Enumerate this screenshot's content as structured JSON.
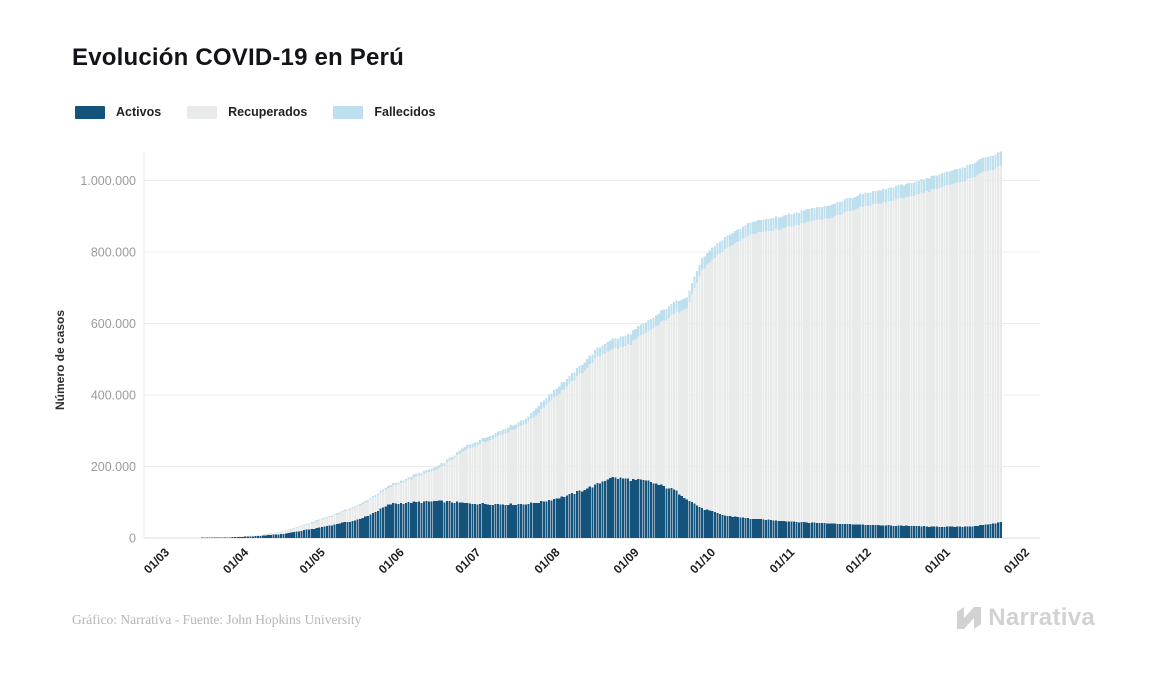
{
  "header": {
    "title": "Evolución COVID-19 en Perú"
  },
  "legend": {
    "items": [
      {
        "label": "Activos",
        "color": "#14537c"
      },
      {
        "label": "Recuperados",
        "color": "#e9eaea"
      },
      {
        "label": "Fallecidos",
        "color": "#bedfee"
      }
    ]
  },
  "footer": {
    "credit": "Gráfico: Narrativa - Fuente: John Hopkins University",
    "logo_text": "Narrativa"
  },
  "chart_data": {
    "type": "bar",
    "variant": "stacked-daily-bars",
    "title": "Evolución COVID-19 en Perú",
    "xlabel": "",
    "ylabel": "Número de casos",
    "ylim": [
      0,
      1100000
    ],
    "grid": true,
    "legend_position": "top-left",
    "colors": {
      "activos": "#14537c",
      "recuperados": "#e9eaea",
      "fallecidos": "#bedfee"
    },
    "grid_color": "#ececec",
    "baseline_color": "#d9dddd",
    "y_tick_color": "#9b9b9b",
    "x_tick_color": "#1d1d1d",
    "y_ticks": [
      {
        "value": 0,
        "label": "0"
      },
      {
        "value": 200000,
        "label": "200.000"
      },
      {
        "value": 400000,
        "label": "400.000"
      },
      {
        "value": 600000,
        "label": "600.000"
      },
      {
        "value": 800000,
        "label": "800.000"
      },
      {
        "value": 1000000,
        "label": "1.000.000"
      }
    ],
    "x_ticks": [
      {
        "date": "2020-03-01",
        "label": "01/03"
      },
      {
        "date": "2020-04-01",
        "label": "01/04"
      },
      {
        "date": "2020-05-01",
        "label": "01/05"
      },
      {
        "date": "2020-06-01",
        "label": "01/06"
      },
      {
        "date": "2020-07-01",
        "label": "01/07"
      },
      {
        "date": "2020-08-01",
        "label": "01/08"
      },
      {
        "date": "2020-09-01",
        "label": "01/09"
      },
      {
        "date": "2020-10-01",
        "label": "01/10"
      },
      {
        "date": "2020-11-01",
        "label": "01/11"
      },
      {
        "date": "2020-12-01",
        "label": "01/12"
      },
      {
        "date": "2021-01-01",
        "label": "01/01"
      },
      {
        "date": "2021-02-01",
        "label": "01/02"
      }
    ],
    "series_order": [
      "activos",
      "recuperados",
      "fallecidos"
    ],
    "anchors": [
      {
        "date": "2020-02-25",
        "activos": 0,
        "recuperados": 0,
        "fallecidos": 0
      },
      {
        "date": "2020-03-05",
        "activos": 20,
        "recuperados": 1,
        "fallecidos": 0
      },
      {
        "date": "2020-03-12",
        "activos": 200,
        "recuperados": 15,
        "fallecidos": 2
      },
      {
        "date": "2020-03-20",
        "activos": 850,
        "recuperados": 50,
        "fallecidos": 9
      },
      {
        "date": "2020-04-01",
        "activos": 2300,
        "recuperados": 900,
        "fallecidos": 100
      },
      {
        "date": "2020-04-10",
        "activos": 5500,
        "recuperados": 1900,
        "fallecidos": 500
      },
      {
        "date": "2020-04-20",
        "activos": 11500,
        "recuperados": 6000,
        "fallecidos": 1200
      },
      {
        "date": "2020-05-01",
        "activos": 25000,
        "recuperados": 16000,
        "fallecidos": 3000
      },
      {
        "date": "2020-05-10",
        "activos": 38000,
        "recuperados": 25500,
        "fallecidos": 3600
      },
      {
        "date": "2020-05-20",
        "activos": 52000,
        "recuperados": 38500,
        "fallecidos": 4200
      },
      {
        "date": "2020-06-01",
        "activos": 95000,
        "recuperados": 48000,
        "fallecidos": 5500
      },
      {
        "date": "2020-06-10",
        "activos": 100000,
        "recuperados": 68000,
        "fallecidos": 6800
      },
      {
        "date": "2020-06-20",
        "activos": 103000,
        "recuperados": 91000,
        "fallecidos": 8000
      },
      {
        "date": "2020-07-01",
        "activos": 97000,
        "recuperados": 152000,
        "fallecidos": 10000
      },
      {
        "date": "2020-07-10",
        "activos": 95000,
        "recuperados": 181000,
        "fallecidos": 11500
      },
      {
        "date": "2020-07-20",
        "activos": 94000,
        "recuperados": 213000,
        "fallecidos": 13200
      },
      {
        "date": "2020-07-25",
        "activos": 96000,
        "recuperados": 230000,
        "fallecidos": 14000
      },
      {
        "date": "2020-07-28",
        "activos": 99000,
        "recuperados": 245000,
        "fallecidos": 19000
      },
      {
        "date": "2020-08-01",
        "activos": 104000,
        "recuperados": 270000,
        "fallecidos": 19800
      },
      {
        "date": "2020-08-10",
        "activos": 120000,
        "recuperados": 310000,
        "fallecidos": 21500
      },
      {
        "date": "2020-08-20",
        "activos": 147000,
        "recuperados": 352000,
        "fallecidos": 24500
      },
      {
        "date": "2020-08-26",
        "activos": 170000,
        "recuperados": 358000,
        "fallecidos": 27000
      },
      {
        "date": "2020-09-01",
        "activos": 165000,
        "recuperados": 371000,
        "fallecidos": 29000
      },
      {
        "date": "2020-09-10",
        "activos": 158000,
        "recuperados": 419000,
        "fallecidos": 30200
      },
      {
        "date": "2020-09-20",
        "activos": 135000,
        "recuperados": 492000,
        "fallecidos": 31200
      },
      {
        "date": "2020-09-25",
        "activos": 110000,
        "recuperados": 535000,
        "fallecidos": 31800
      },
      {
        "date": "2020-10-01",
        "activos": 82000,
        "recuperados": 669000,
        "fallecidos": 32500
      },
      {
        "date": "2020-10-10",
        "activos": 63000,
        "recuperados": 745000,
        "fallecidos": 33200
      },
      {
        "date": "2020-10-20",
        "activos": 54000,
        "recuperados": 796000,
        "fallecidos": 33900
      },
      {
        "date": "2020-11-01",
        "activos": 48000,
        "recuperados": 818000,
        "fallecidos": 34600
      },
      {
        "date": "2020-11-10",
        "activos": 44000,
        "recuperados": 838000,
        "fallecidos": 35000
      },
      {
        "date": "2020-11-20",
        "activos": 41000,
        "recuperados": 856000,
        "fallecidos": 35400
      },
      {
        "date": "2020-12-01",
        "activos": 38000,
        "recuperados": 886000,
        "fallecidos": 36100
      },
      {
        "date": "2020-12-10",
        "activos": 35500,
        "recuperados": 901500,
        "fallecidos": 36500
      },
      {
        "date": "2020-12-20",
        "activos": 34000,
        "recuperados": 919500,
        "fallecidos": 37000
      },
      {
        "date": "2021-01-01",
        "activos": 31500,
        "recuperados": 946000,
        "fallecidos": 37800
      },
      {
        "date": "2021-01-10",
        "activos": 31000,
        "recuperados": 965000,
        "fallecidos": 38300
      },
      {
        "date": "2021-01-15",
        "activos": 33000,
        "recuperados": 977000,
        "fallecidos": 38600
      },
      {
        "date": "2021-01-20",
        "activos": 37000,
        "recuperados": 988500,
        "fallecidos": 38900
      },
      {
        "date": "2021-01-24",
        "activos": 41500,
        "recuperados": 992500,
        "fallecidos": 39100
      },
      {
        "date": "2021-01-26",
        "activos": 45000,
        "recuperados": 998000,
        "fallecidos": 39500
      }
    ]
  }
}
